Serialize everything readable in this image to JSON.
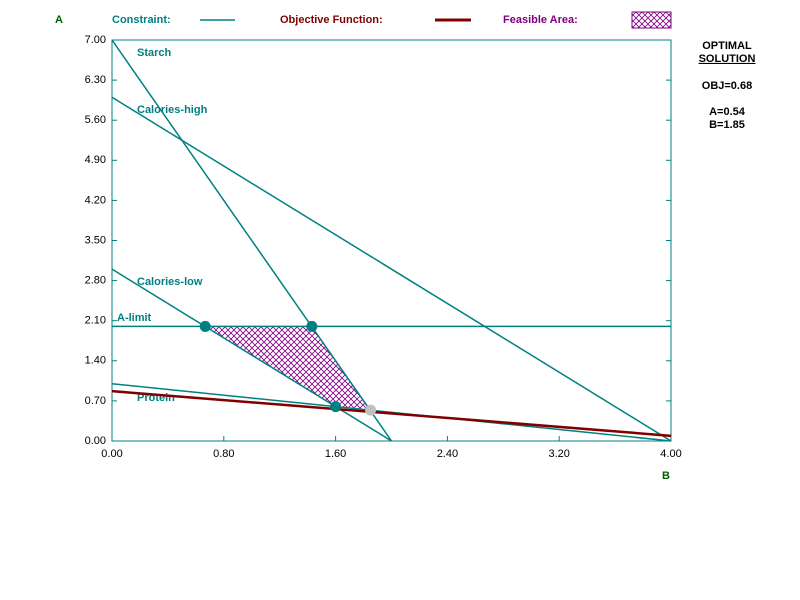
{
  "chart_data": {
    "type": "line",
    "y_axis_label": "A",
    "x_axis_label": "B",
    "legend": {
      "constraint": "Constraint:",
      "objective": "Objective Function:",
      "feasible": "Feasible Area:"
    },
    "xlim": [
      0,
      4
    ],
    "ylim": [
      0,
      7
    ],
    "xticks": [
      {
        "value": 0,
        "label": "0.00"
      },
      {
        "value": 0.8,
        "label": "0.80"
      },
      {
        "value": 1.6,
        "label": "1.60"
      },
      {
        "value": 2.4,
        "label": "2.40"
      },
      {
        "value": 3.2,
        "label": "3.20"
      },
      {
        "value": 4,
        "label": "4.00"
      }
    ],
    "yticks": [
      {
        "value": 0,
        "label": "0.00"
      },
      {
        "value": 0.7,
        "label": "0.70"
      },
      {
        "value": 1.4,
        "label": "1.40"
      },
      {
        "value": 2.1,
        "label": "2.10"
      },
      {
        "value": 2.8,
        "label": "2.80"
      },
      {
        "value": 3.5,
        "label": "3.50"
      },
      {
        "value": 4.2,
        "label": "4.20"
      },
      {
        "value": 4.9,
        "label": "4.90"
      },
      {
        "value": 5.6,
        "label": "5.60"
      },
      {
        "value": 6.3,
        "label": "6.30"
      },
      {
        "value": 7,
        "label": "7.00"
      }
    ],
    "constraint_color": "#008080",
    "series": [
      {
        "name": "Starch",
        "x": [
          0,
          2
        ],
        "values": [
          7,
          0
        ]
      },
      {
        "name": "Calories-high",
        "x": [
          0,
          4
        ],
        "values": [
          6,
          0
        ]
      },
      {
        "name": "Calories-low",
        "x": [
          0,
          2
        ],
        "values": [
          3,
          0
        ]
      },
      {
        "name": "A-limit",
        "x": [
          0,
          4
        ],
        "values": [
          2,
          2
        ]
      },
      {
        "name": "Protein",
        "x": [
          0,
          4
        ],
        "values": [
          1,
          0
        ]
      }
    ],
    "objective": {
      "color": "#800000",
      "x": [
        0,
        4
      ],
      "values": [
        0.87,
        0.09
      ]
    },
    "feasible_area": {
      "color": "#800080",
      "x": [
        0.667,
        1.43,
        1.85,
        1.6
      ],
      "values": [
        2,
        2,
        0.54,
        0.6
      ]
    },
    "corner_points": {
      "color": "#008080",
      "x": [
        0.667,
        1.43,
        1.6
      ],
      "values": [
        2,
        2,
        0.6
      ]
    },
    "optimal_point": {
      "color": "#c0c0c0",
      "x": [
        1.85
      ],
      "values": [
        0.54
      ]
    },
    "solution": {
      "title_line1": "OPTIMAL",
      "title_line2": "SOLUTION",
      "obj": "OBJ=0.68",
      "a": "A=0.54",
      "b": "B=1.85"
    }
  }
}
